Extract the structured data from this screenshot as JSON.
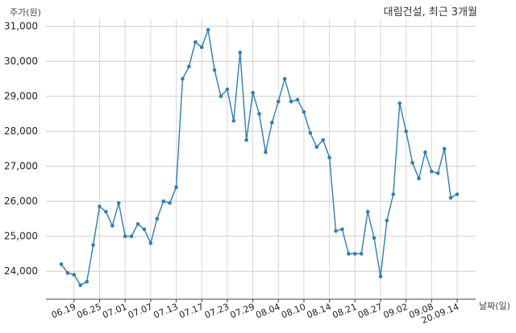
{
  "chart_data": {
    "type": "line",
    "title": "대림건설, 최근 3개월",
    "ylabel": "주가(원)",
    "xlabel": "날짜(일)",
    "ylim": [
      23200,
      31200
    ],
    "yticks": [
      24000,
      25000,
      26000,
      27000,
      28000,
      29000,
      30000,
      31000
    ],
    "ytick_labels": [
      "24,000",
      "25,000",
      "26,000",
      "27,000",
      "28,000",
      "29,000",
      "30,000",
      "31,000"
    ],
    "grid": true,
    "line_color": "#2f7eb3",
    "x_tick_labels": [
      {
        "label": "06.19",
        "index": 2
      },
      {
        "label": "06.25",
        "index": 6
      },
      {
        "label": "07.01",
        "index": 10
      },
      {
        "label": "07.07",
        "index": 14
      },
      {
        "label": "07.13",
        "index": 18
      },
      {
        "label": "07.17",
        "index": 22
      },
      {
        "label": "07.23",
        "index": 26
      },
      {
        "label": "07.29",
        "index": 30
      },
      {
        "label": "08.04",
        "index": 34
      },
      {
        "label": "08.10",
        "index": 38
      },
      {
        "label": "08.14",
        "index": 42
      },
      {
        "label": "08.21",
        "index": 46
      },
      {
        "label": "08.27",
        "index": 50
      },
      {
        "label": "09.02",
        "index": 54
      },
      {
        "label": "09.08",
        "index": 58
      },
      {
        "label": "20.09.14",
        "index": 62
      }
    ],
    "series": [
      {
        "values": [
          24200,
          23950,
          23900,
          23600,
          23700,
          24750,
          25850,
          25700,
          25300,
          25950,
          25000,
          25000,
          25350,
          25200,
          24800,
          25500,
          26000,
          25950,
          26400,
          29500,
          29850,
          30550,
          30400,
          30900,
          29750,
          29000,
          29200,
          28300,
          30250,
          27750,
          29100,
          28500,
          27400,
          28250,
          28850,
          29500,
          28850,
          28900,
          28550,
          27950,
          27550,
          27750,
          27250,
          25150,
          25200,
          24500,
          24500,
          24500,
          25700,
          24950,
          23850,
          25450,
          26200,
          28800,
          28000,
          27100,
          26650,
          27400,
          26850,
          26800,
          27500,
          26100,
          26200
        ]
      }
    ]
  }
}
